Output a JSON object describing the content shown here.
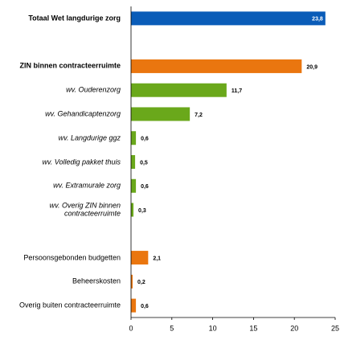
{
  "chart_data": {
    "type": "hbar",
    "categories": [
      "Totaal Wet langdurige zorg",
      null,
      "ZIN binnen contracteerruimte",
      "wv. Ouderenzorg",
      "wv. Gehandicaptenzorg",
      "wv. Langdurige ggz",
      "wv. Volledig pakket thuis",
      "wv. Extramurale zorg",
      "wv. Overig ZIN binnen contracteerruimte",
      null,
      "Persoonsgebonden budgetten",
      "Beheerskosten",
      "Overig buiten contracteerruimte"
    ],
    "values": [
      23.8,
      null,
      20.9,
      11.7,
      7.2,
      0.6,
      0.5,
      0.6,
      0.3,
      null,
      2.1,
      0.2,
      0.6
    ],
    "value_labels": [
      "23,8",
      null,
      "20,9",
      "11,7",
      "7,2",
      "0,6",
      "0,5",
      "0,6",
      "0,3",
      null,
      "2,1",
      "0,2",
      "0,6"
    ],
    "colors": [
      "#0a5cb8",
      null,
      "#ea760f",
      "#6aa81b",
      "#6aa81b",
      "#6aa81b",
      "#6aa81b",
      "#6aa81b",
      "#6aa81b",
      null,
      "#ea760f",
      "#ea760f",
      "#ea760f"
    ],
    "xlim": [
      0,
      25
    ],
    "xticks": [
      0,
      5,
      10,
      15,
      20,
      25
    ]
  }
}
